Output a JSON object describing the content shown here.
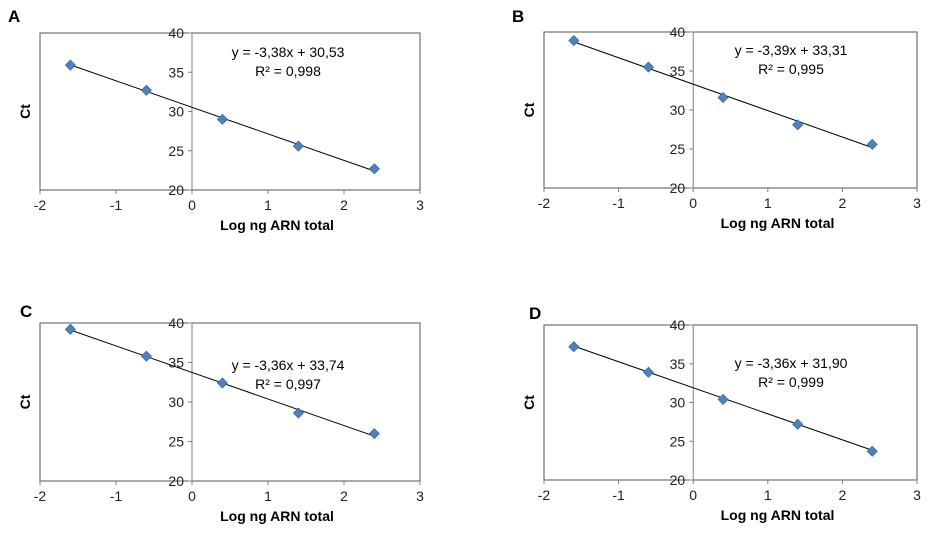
{
  "chart_data": [
    {
      "type": "scatter",
      "panel": "A",
      "xlabel": "Log ng ARN total",
      "ylabel": "Ct",
      "xlim": [
        -2,
        3
      ],
      "ylim": [
        20,
        40
      ],
      "x_ticks": [
        "-2",
        "-1",
        "0",
        "1",
        "2",
        "3"
      ],
      "y_ticks": [
        "20",
        "25",
        "30",
        "35",
        "40"
      ],
      "equation": "y = -3,38x + 30,53",
      "r2": "R² = 0,998",
      "points": [
        {
          "x": -1.6,
          "y": 35.9
        },
        {
          "x": -0.6,
          "y": 32.7
        },
        {
          "x": 0.4,
          "y": 29.0
        },
        {
          "x": 1.4,
          "y": 25.6
        },
        {
          "x": 2.4,
          "y": 22.7
        }
      ],
      "trendline": {
        "slope": -3.38,
        "intercept": 30.53
      },
      "grid": false
    },
    {
      "type": "scatter",
      "panel": "B",
      "xlabel": "Log ng ARN total",
      "ylabel": "Ct",
      "xlim": [
        -2,
        3
      ],
      "ylim": [
        20,
        40
      ],
      "x_ticks": [
        "-2",
        "-1",
        "0",
        "1",
        "2",
        "3"
      ],
      "y_ticks": [
        "20",
        "25",
        "30",
        "35",
        "40"
      ],
      "equation": "y = -3,39x + 33,31",
      "r2": "R² = 0,995",
      "points": [
        {
          "x": -1.6,
          "y": 38.9
        },
        {
          "x": -0.6,
          "y": 35.5
        },
        {
          "x": 0.4,
          "y": 31.6
        },
        {
          "x": 1.4,
          "y": 28.1
        },
        {
          "x": 2.4,
          "y": 25.6
        }
      ],
      "trendline": {
        "slope": -3.39,
        "intercept": 33.31
      },
      "grid": false
    },
    {
      "type": "scatter",
      "panel": "C",
      "xlabel": "Log ng ARN total",
      "ylabel": "Ct",
      "xlim": [
        -2,
        3
      ],
      "ylim": [
        20,
        40
      ],
      "x_ticks": [
        "-2",
        "-1",
        "0",
        "1",
        "2",
        "3"
      ],
      "y_ticks": [
        "20",
        "25",
        "30",
        "35",
        "40"
      ],
      "equation": "y = -3,36x + 33,74",
      "r2": "R² = 0,997",
      "points": [
        {
          "x": -1.6,
          "y": 39.2
        },
        {
          "x": -0.6,
          "y": 35.8
        },
        {
          "x": 0.4,
          "y": 32.4
        },
        {
          "x": 1.4,
          "y": 28.6
        },
        {
          "x": 2.4,
          "y": 26.0
        }
      ],
      "trendline": {
        "slope": -3.36,
        "intercept": 33.74
      },
      "grid": false
    },
    {
      "type": "scatter",
      "panel": "D",
      "xlabel": "Log ng ARN total",
      "ylabel": "Ct",
      "xlim": [
        -2,
        3
      ],
      "ylim": [
        20,
        40
      ],
      "x_ticks": [
        "-2",
        "-1",
        "0",
        "1",
        "2",
        "3"
      ],
      "y_ticks": [
        "20",
        "25",
        "30",
        "35",
        "40"
      ],
      "equation": "y = -3,36x + 31,90",
      "r2": "R² = 0,999",
      "points": [
        {
          "x": -1.6,
          "y": 37.2
        },
        {
          "x": -0.6,
          "y": 33.9
        },
        {
          "x": 0.4,
          "y": 30.4
        },
        {
          "x": 1.4,
          "y": 27.2
        },
        {
          "x": 2.4,
          "y": 23.7
        }
      ],
      "trendline": {
        "slope": -3.36,
        "intercept": 31.9
      },
      "grid": false
    }
  ],
  "colors": {
    "marker": "#4F81BD",
    "marker_edge": "#3A6AA3",
    "trendline": "#000000",
    "axis": "#7f7f7f",
    "plot_border": "#555555"
  }
}
